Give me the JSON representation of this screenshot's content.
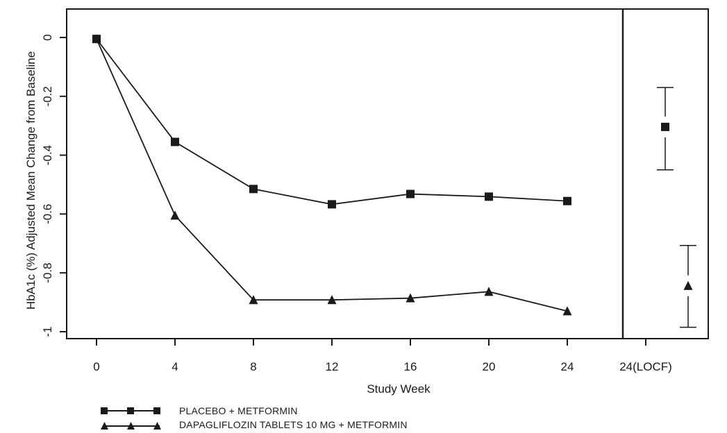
{
  "colors": {
    "ink": "#1a1a1a",
    "background": "#ffffff"
  },
  "chart_data": {
    "type": "line",
    "xlabel": "Study Week",
    "ylabel": "HbA1c (%) Adjusted Mean Change from Baseline",
    "x_ticks": [
      "0",
      "4",
      "8",
      "12",
      "16",
      "20",
      "24",
      "24(LOCF)"
    ],
    "y_ticks": [
      "0",
      "-0.2",
      "-0.4",
      "-0.6",
      "-0.8",
      "-1"
    ],
    "x_range": [
      -1,
      26
    ],
    "ylim": [
      -1.01,
      0.1
    ],
    "grid": false,
    "legend_position": "bottom-left",
    "series": [
      {
        "name": "PLACEBO + METFORMIN",
        "marker": "square",
        "x": [
          0,
          4,
          8,
          12,
          16,
          20,
          24
        ],
        "y": [
          -0.005,
          -0.355,
          -0.515,
          -0.567,
          -0.532,
          -0.541,
          -0.556
        ],
        "locf": {
          "y": -0.304,
          "ci": [
            -0.45,
            -0.17
          ]
        }
      },
      {
        "name": "DAPAGLIFLOZIN TABLETS 10 MG + METFORMIN",
        "marker": "triangle",
        "x": [
          0,
          4,
          8,
          12,
          16,
          20,
          24
        ],
        "y": [
          -0.005,
          -0.605,
          -0.892,
          -0.892,
          -0.886,
          -0.864,
          -0.93
        ],
        "locf": {
          "y": -0.844,
          "ci": [
            -0.985,
            -0.707
          ]
        }
      }
    ]
  }
}
